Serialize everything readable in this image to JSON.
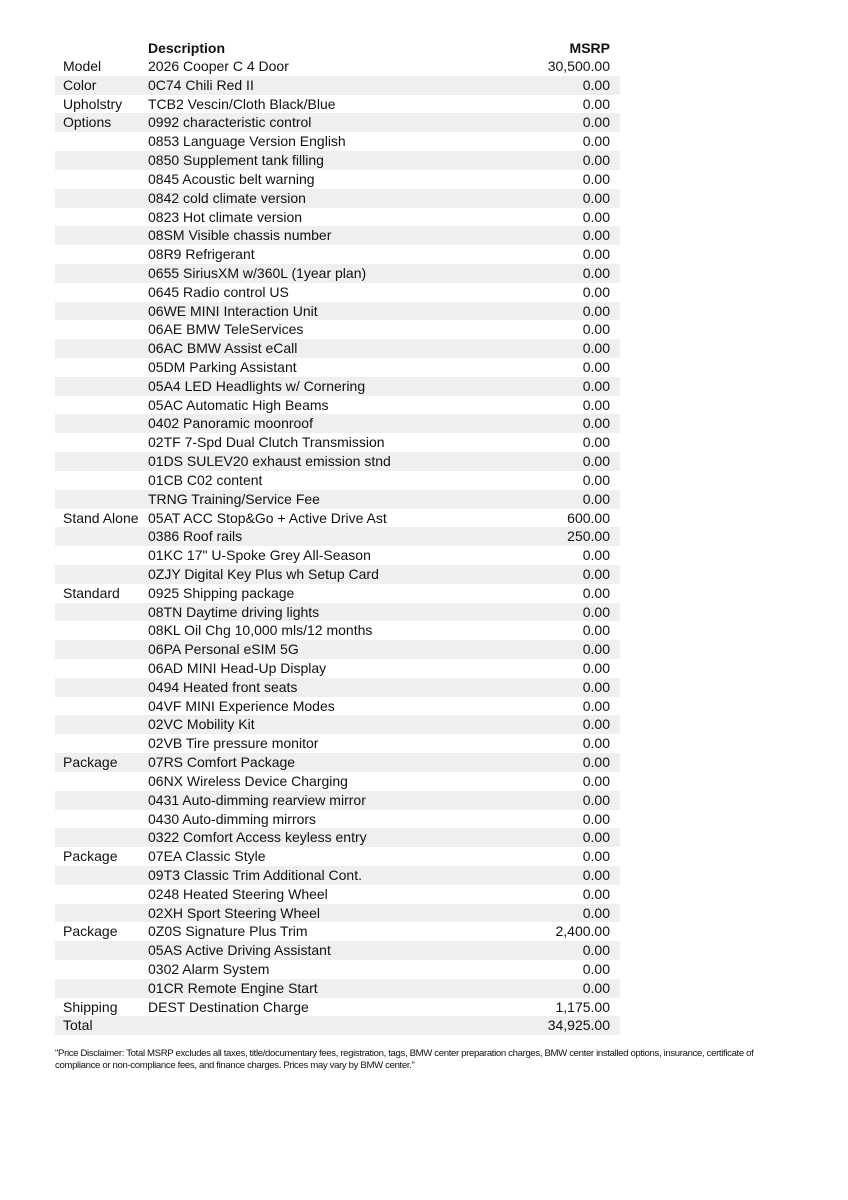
{
  "header": {
    "description": "Description",
    "msrp": "MSRP"
  },
  "rows": [
    {
      "category": "Model",
      "description": "2026 Cooper C 4 Door",
      "msrp": "30,500.00"
    },
    {
      "category": "Color",
      "description": "0C74 Chili Red II",
      "msrp": "0.00"
    },
    {
      "category": "Upholstry",
      "description": "TCB2 Vescin/Cloth Black/Blue",
      "msrp": "0.00"
    },
    {
      "category": "Options",
      "description": "0992 characteristic control",
      "msrp": "0.00"
    },
    {
      "category": "",
      "description": "0853 Language Version English",
      "msrp": "0.00"
    },
    {
      "category": "",
      "description": "0850 Supplement tank filling",
      "msrp": "0.00"
    },
    {
      "category": "",
      "description": "0845 Acoustic belt warning",
      "msrp": "0.00"
    },
    {
      "category": "",
      "description": "0842 cold climate version",
      "msrp": "0.00"
    },
    {
      "category": "",
      "description": "0823 Hot climate version",
      "msrp": "0.00"
    },
    {
      "category": "",
      "description": "08SM Visible chassis number",
      "msrp": "0.00"
    },
    {
      "category": "",
      "description": "08R9 Refrigerant",
      "msrp": "0.00"
    },
    {
      "category": "",
      "description": "0655 SiriusXM w/360L (1year plan)",
      "msrp": "0.00"
    },
    {
      "category": "",
      "description": "0645 Radio control US",
      "msrp": "0.00"
    },
    {
      "category": "",
      "description": "06WE MINI Interaction Unit",
      "msrp": "0.00"
    },
    {
      "category": "",
      "description": "06AE BMW TeleServices",
      "msrp": "0.00"
    },
    {
      "category": "",
      "description": "06AC BMW Assist eCall",
      "msrp": "0.00"
    },
    {
      "category": "",
      "description": "05DM Parking Assistant",
      "msrp": "0.00"
    },
    {
      "category": "",
      "description": "05A4 LED Headlights w/ Cornering",
      "msrp": "0.00"
    },
    {
      "category": "",
      "description": "05AC Automatic High Beams",
      "msrp": "0.00"
    },
    {
      "category": "",
      "description": "0402 Panoramic moonroof",
      "msrp": "0.00"
    },
    {
      "category": "",
      "description": "02TF 7-Spd Dual Clutch Transmission",
      "msrp": "0.00"
    },
    {
      "category": "",
      "description": "01DS SULEV20 exhaust emission stnd",
      "msrp": "0.00"
    },
    {
      "category": "",
      "description": "01CB C02 content",
      "msrp": "0.00"
    },
    {
      "category": "",
      "description": "TRNG Training/Service Fee",
      "msrp": "0.00"
    },
    {
      "category": "Stand Alone",
      "description": "05AT ACC Stop&Go + Active Drive Ast",
      "msrp": "600.00"
    },
    {
      "category": "",
      "description": "0386 Roof rails",
      "msrp": "250.00"
    },
    {
      "category": "",
      "description": "01KC 17\" U-Spoke Grey All-Season",
      "msrp": "0.00"
    },
    {
      "category": "",
      "description": "0ZJY Digital Key Plus wh Setup Card",
      "msrp": "0.00"
    },
    {
      "category": "Standard",
      "description": "0925 Shipping package",
      "msrp": "0.00"
    },
    {
      "category": "",
      "description": "08TN Daytime driving lights",
      "msrp": "0.00"
    },
    {
      "category": "",
      "description": "08KL Oil Chg 10,000 mls/12 months",
      "msrp": "0.00"
    },
    {
      "category": "",
      "description": "06PA Personal eSIM 5G",
      "msrp": "0.00"
    },
    {
      "category": "",
      "description": "06AD MINI Head-Up Display",
      "msrp": "0.00"
    },
    {
      "category": "",
      "description": "0494 Heated front seats",
      "msrp": "0.00"
    },
    {
      "category": "",
      "description": "04VF MINI Experience Modes",
      "msrp": "0.00"
    },
    {
      "category": "",
      "description": "02VC Mobility Kit",
      "msrp": "0.00"
    },
    {
      "category": "",
      "description": "02VB Tire pressure monitor",
      "msrp": "0.00"
    },
    {
      "category": "Package",
      "description": "07RS Comfort Package",
      "msrp": "0.00"
    },
    {
      "category": "",
      "description": "06NX Wireless Device Charging",
      "msrp": "0.00"
    },
    {
      "category": "",
      "description": "0431 Auto-dimming rearview mirror",
      "msrp": "0.00"
    },
    {
      "category": "",
      "description": "0430 Auto-dimming mirrors",
      "msrp": "0.00"
    },
    {
      "category": "",
      "description": "0322 Comfort Access keyless entry",
      "msrp": "0.00"
    },
    {
      "category": "Package",
      "description": "07EA Classic Style",
      "msrp": "0.00"
    },
    {
      "category": "",
      "description": "09T3 Classic Trim Additional Cont.",
      "msrp": "0.00"
    },
    {
      "category": "",
      "description": "0248 Heated Steering Wheel",
      "msrp": "0.00"
    },
    {
      "category": "",
      "description": "02XH Sport Steering Wheel",
      "msrp": "0.00"
    },
    {
      "category": "Package",
      "description": "0Z0S Signature Plus Trim",
      "msrp": "2,400.00"
    },
    {
      "category": "",
      "description": "05AS Active Driving Assistant",
      "msrp": "0.00"
    },
    {
      "category": "",
      "description": "0302 Alarm System",
      "msrp": "0.00"
    },
    {
      "category": "",
      "description": "01CR Remote Engine Start",
      "msrp": "0.00"
    },
    {
      "category": "Shipping",
      "description": "DEST Destination Charge",
      "msrp": "1,175.00"
    },
    {
      "category": "Total",
      "description": "",
      "msrp": "34,925.00"
    }
  ],
  "disclaimer": "\"Price Disclaimer: Total MSRP excludes all taxes, title/documentary fees, registration, tags, BMW center preparation charges, BMW center installed options, insurance, certificate of compliance or non-compliance fees, and finance charges. Prices may vary by BMW center.\"",
  "colors": {
    "stripe": "#efefef",
    "text": "#111111"
  }
}
